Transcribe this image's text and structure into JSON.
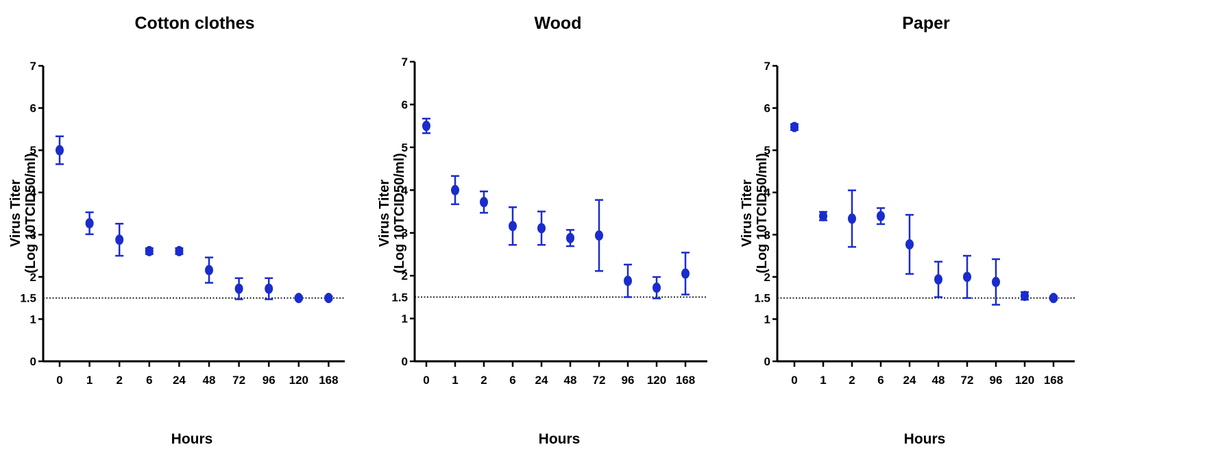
{
  "colors": {
    "marker": "#1a2ccc",
    "axis": "#000000",
    "threshold": "#000000"
  },
  "chart_data": [
    {
      "type": "scatter",
      "title": "Cotton clothes",
      "xlabel": "Hours",
      "ylabel_line1": "Virus Titer",
      "ylabel_line2": "(Log 10TCID50/ml)",
      "categories": [
        "0",
        "1",
        "2",
        "6",
        "24",
        "48",
        "72",
        "96",
        "120",
        "168"
      ],
      "values": [
        5.0,
        3.27,
        2.88,
        2.61,
        2.61,
        2.16,
        1.72,
        1.72,
        1.5,
        1.5
      ],
      "error": [
        0.33,
        0.26,
        0.38,
        0.07,
        0.07,
        0.3,
        0.25,
        0.25,
        0.04,
        0.04
      ],
      "yticks": [
        "0",
        "1",
        "1.5",
        "2",
        "3",
        "4",
        "5",
        "6",
        "7"
      ],
      "ylim": [
        0,
        7
      ],
      "threshold": 1.5,
      "grid": false
    },
    {
      "type": "scatter",
      "title": "Wood",
      "xlabel": "Hours",
      "ylabel_line1": "Virus Titer",
      "ylabel_line2": "(Log 10TCID50/ml)",
      "categories": [
        "0",
        "1",
        "2",
        "6",
        "24",
        "48",
        "72",
        "96",
        "120",
        "168"
      ],
      "values": [
        5.5,
        4.0,
        3.72,
        3.16,
        3.11,
        2.88,
        2.94,
        1.88,
        1.72,
        2.05
      ],
      "error": [
        0.17,
        0.33,
        0.25,
        0.44,
        0.39,
        0.19,
        0.83,
        0.38,
        0.25,
        0.49
      ],
      "yticks": [
        "0",
        "1",
        "1.5",
        "2",
        "3",
        "4",
        "5",
        "6",
        "7"
      ],
      "ylim": [
        0,
        7
      ],
      "threshold": 1.5,
      "grid": false
    },
    {
      "type": "scatter",
      "title": "Paper",
      "xlabel": "Hours",
      "ylabel_line1": "Virus Titer",
      "ylabel_line2": "(Log 10TCID50/ml)",
      "categories": [
        "0",
        "1",
        "2",
        "6",
        "24",
        "48",
        "72",
        "96",
        "120",
        "168"
      ],
      "values": [
        5.55,
        3.44,
        3.38,
        3.44,
        2.77,
        1.94,
        2.0,
        1.88,
        1.55,
        1.5
      ],
      "error": [
        0.07,
        0.1,
        0.67,
        0.19,
        0.7,
        0.42,
        0.5,
        0.54,
        0.09,
        0.04
      ],
      "yticks": [
        "0",
        "1",
        "1.5",
        "2",
        "3",
        "4",
        "5",
        "6",
        "7"
      ],
      "ylim": [
        0,
        7
      ],
      "threshold": 1.5,
      "grid": false
    }
  ]
}
